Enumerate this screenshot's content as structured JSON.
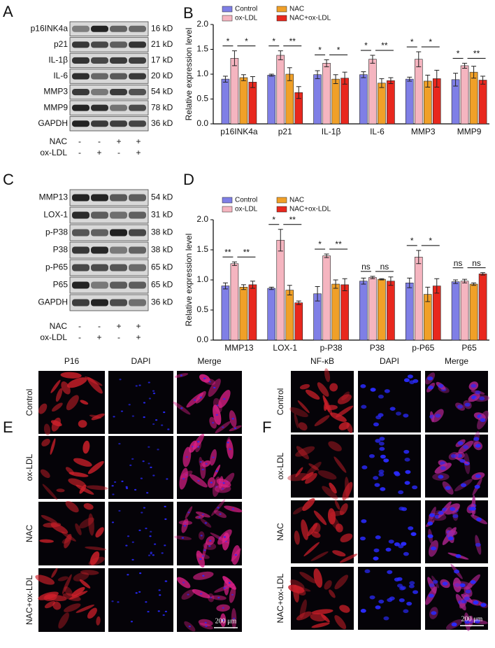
{
  "panel_a": {
    "letter": "A",
    "rows": [
      {
        "protein": "p16INK4a",
        "size": "16 kD"
      },
      {
        "protein": "p21",
        "size": "21 kD"
      },
      {
        "protein": "IL-1β",
        "size": "17 kD"
      },
      {
        "protein": "IL-6",
        "size": "20 kD"
      },
      {
        "protein": "MMP3",
        "size": "54 kD"
      },
      {
        "protein": "MMP9",
        "size": "78 kD"
      },
      {
        "protein": "GAPDH",
        "size": "36 kD"
      }
    ],
    "treatments": [
      {
        "name": "NAC",
        "signs": [
          "-",
          "-",
          "+",
          "+"
        ]
      },
      {
        "name": "ox-LDL",
        "signs": [
          "-",
          "+",
          "-",
          "+"
        ]
      }
    ]
  },
  "panel_c": {
    "letter": "C",
    "rows": [
      {
        "protein": "MMP13",
        "size": "54 kD"
      },
      {
        "protein": "LOX-1",
        "size": "31 kD"
      },
      {
        "protein": "p-P38",
        "size": "38 kD"
      },
      {
        "protein": "P38",
        "size": "38 kD"
      },
      {
        "protein": "p-P65",
        "size": "65 kD"
      },
      {
        "protein": "P65",
        "size": "65 kD"
      },
      {
        "protein": "GAPDH",
        "size": "36 kD"
      }
    ],
    "treatments": [
      {
        "name": "NAC",
        "signs": [
          "-",
          "-",
          "+",
          "+"
        ]
      },
      {
        "name": "ox-LDL",
        "signs": [
          "-",
          "+",
          "-",
          "+"
        ]
      }
    ]
  },
  "chart_data": [
    {
      "type": "bar",
      "letter": "B",
      "ylabel": "Relative expression level",
      "categories": [
        "p16INK4a",
        "p21",
        "IL-1β",
        "IL-6",
        "MMP3",
        "MMP9"
      ],
      "series": [
        {
          "name": "Control",
          "color": "#7f7fe6",
          "values": [
            0.9,
            0.98,
            0.99,
            0.99,
            0.9,
            0.89
          ],
          "errors": [
            0.06,
            0.02,
            0.08,
            0.06,
            0.04,
            0.13
          ]
        },
        {
          "name": "ox-LDL",
          "color": "#f5b5c0",
          "values": [
            1.32,
            1.38,
            1.22,
            1.3,
            1.3,
            1.17
          ],
          "errors": [
            0.15,
            0.09,
            0.07,
            0.08,
            0.15,
            0.05
          ]
        },
        {
          "name": "NAC",
          "color": "#f0a028",
          "values": [
            0.93,
            1.0,
            0.9,
            0.82,
            0.86,
            1.04
          ],
          "errors": [
            0.06,
            0.13,
            0.09,
            0.09,
            0.12,
            0.12
          ]
        },
        {
          "name": "NAC+ox-LDL",
          "color": "#e8281e",
          "values": [
            0.84,
            0.63,
            0.92,
            0.87,
            0.91,
            0.88
          ],
          "errors": [
            0.11,
            0.12,
            0.12,
            0.06,
            0.17,
            0.08
          ]
        }
      ],
      "significance": [
        [
          "*",
          "*"
        ],
        [
          "*",
          "**"
        ],
        [
          "*",
          "*"
        ],
        [
          "*",
          "**"
        ],
        [
          "*",
          "*"
        ],
        [
          "*",
          "**"
        ]
      ],
      "ylim": [
        0,
        2
      ],
      "yticks": [
        {
          "value": 0,
          "label": "0.0"
        },
        0.5,
        {
          "value": 1,
          "label": "1.0"
        },
        1.5,
        {
          "value": 2,
          "label": "2.0"
        }
      ],
      "legend": "top-left"
    },
    {
      "type": "bar",
      "letter": "D",
      "ylabel": "Relative expression level",
      "categories": [
        "MMP13",
        "LOX-1",
        "p-P38",
        "P38",
        "p-P65",
        "P65"
      ],
      "series": [
        {
          "name": "Control",
          "color": "#7f7fe6",
          "values": [
            0.9,
            0.86,
            0.77,
            0.98,
            0.95,
            0.97
          ],
          "errors": [
            0.05,
            0.02,
            0.12,
            0.05,
            0.08,
            0.03
          ]
        },
        {
          "name": "ox-LDL",
          "color": "#f5b5c0",
          "values": [
            1.27,
            1.66,
            1.4,
            1.04,
            1.38,
            0.98
          ],
          "errors": [
            0.03,
            0.18,
            0.03,
            0.02,
            0.11,
            0.03
          ]
        },
        {
          "name": "NAC",
          "color": "#f0a028",
          "values": [
            0.88,
            0.83,
            0.93,
            1.01,
            0.76,
            0.93
          ],
          "errors": [
            0.04,
            0.08,
            0.07,
            0.01,
            0.12,
            0.02
          ]
        },
        {
          "name": "NAC+ox-LDL",
          "color": "#e8281e",
          "values": [
            0.92,
            0.62,
            0.92,
            0.98,
            0.9,
            1.1
          ],
          "errors": [
            0.06,
            0.03,
            0.1,
            0.07,
            0.12,
            0.02
          ]
        }
      ],
      "significance": [
        [
          "**",
          "**"
        ],
        [
          "*",
          "**"
        ],
        [
          "*",
          "**"
        ],
        [
          "ns",
          "ns"
        ],
        [
          "*",
          "*"
        ],
        [
          "ns",
          "ns"
        ]
      ],
      "ylim": [
        0,
        2
      ],
      "yticks": [
        {
          "value": 0,
          "label": "0.0"
        },
        0.5,
        {
          "value": 1,
          "label": "1.0"
        },
        1.5,
        {
          "value": 2,
          "label": "2.0"
        }
      ],
      "legend": "top-left"
    }
  ],
  "panel_e": {
    "letter": "E",
    "columns": [
      "P16",
      "DAPI",
      "Merge"
    ],
    "rows": [
      "Control",
      "ox-LDL",
      "NAC",
      "NAC+ox-LDL"
    ],
    "scale_bar": "200 μm"
  },
  "panel_f": {
    "letter": "F",
    "columns": [
      "NF-κB",
      "DAPI",
      "Merge"
    ],
    "rows": [
      "Control",
      "ox-LDL",
      "NAC",
      "NAC+ox-LDL"
    ],
    "scale_bar": "200 μm"
  }
}
